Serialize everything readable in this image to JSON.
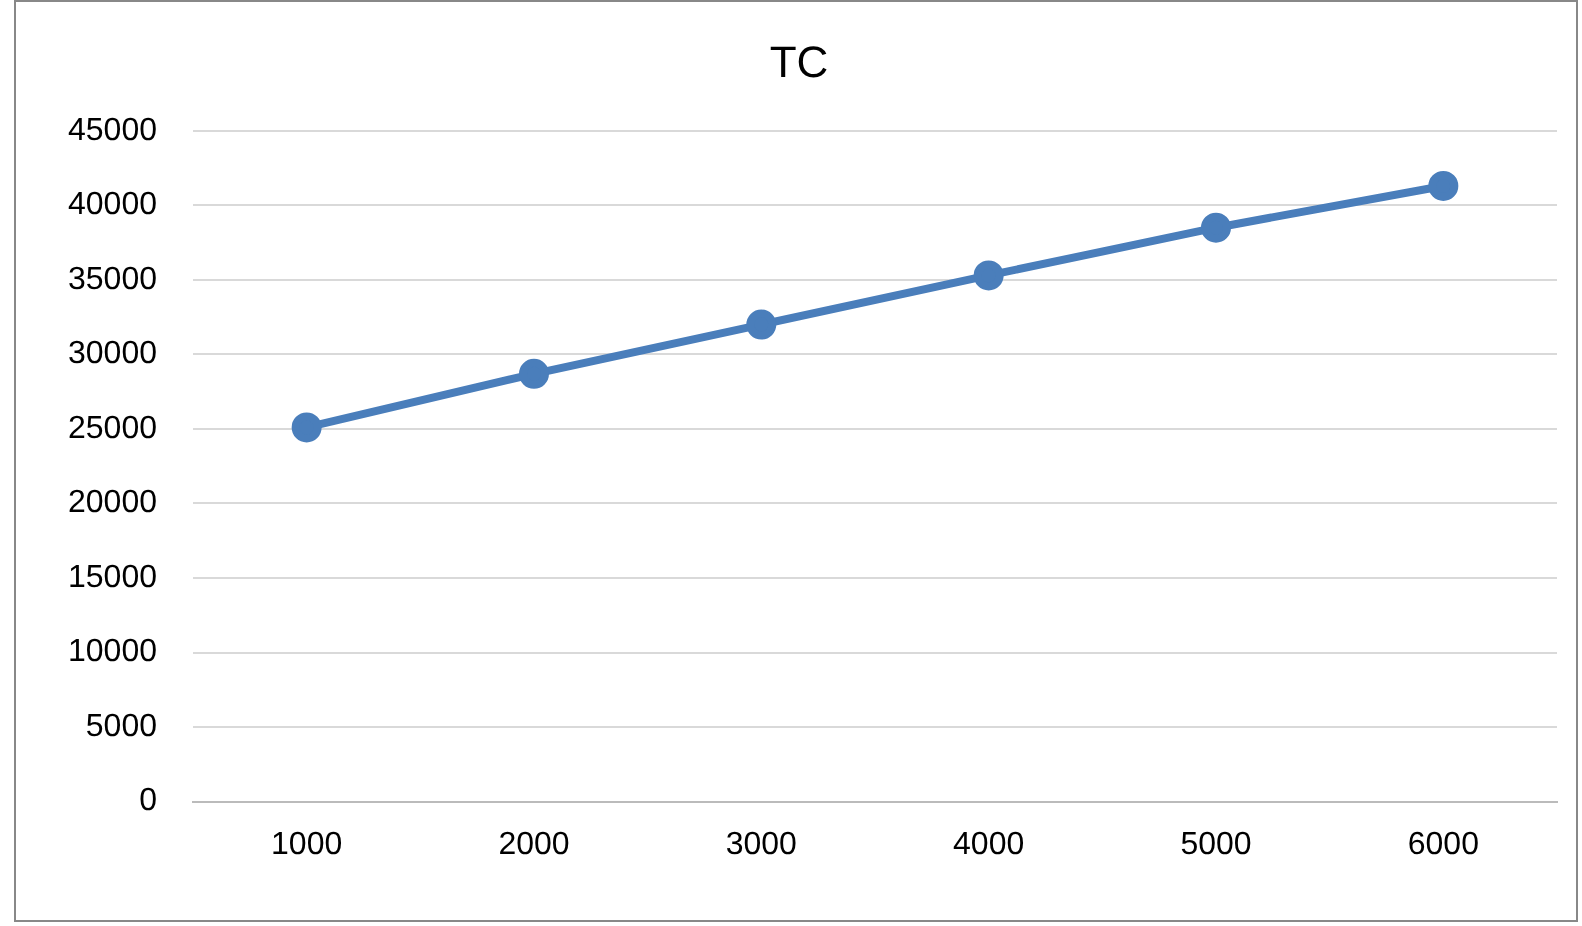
{
  "chart_data": {
    "type": "line",
    "title": "TC",
    "categories": [
      "1000",
      "2000",
      "3000",
      "4000",
      "5000",
      "6000"
    ],
    "series": [
      {
        "color": "#4a7ebb",
        "values": [
          25100,
          28700,
          32000,
          35300,
          38500,
          41300
        ]
      }
    ],
    "ylim": [
      0,
      45000
    ],
    "yticks": [
      0,
      5000,
      10000,
      15000,
      20000,
      25000,
      30000,
      35000,
      40000,
      45000
    ],
    "grid": "y",
    "legend": false,
    "marker": "circle",
    "line_style": "solid"
  }
}
